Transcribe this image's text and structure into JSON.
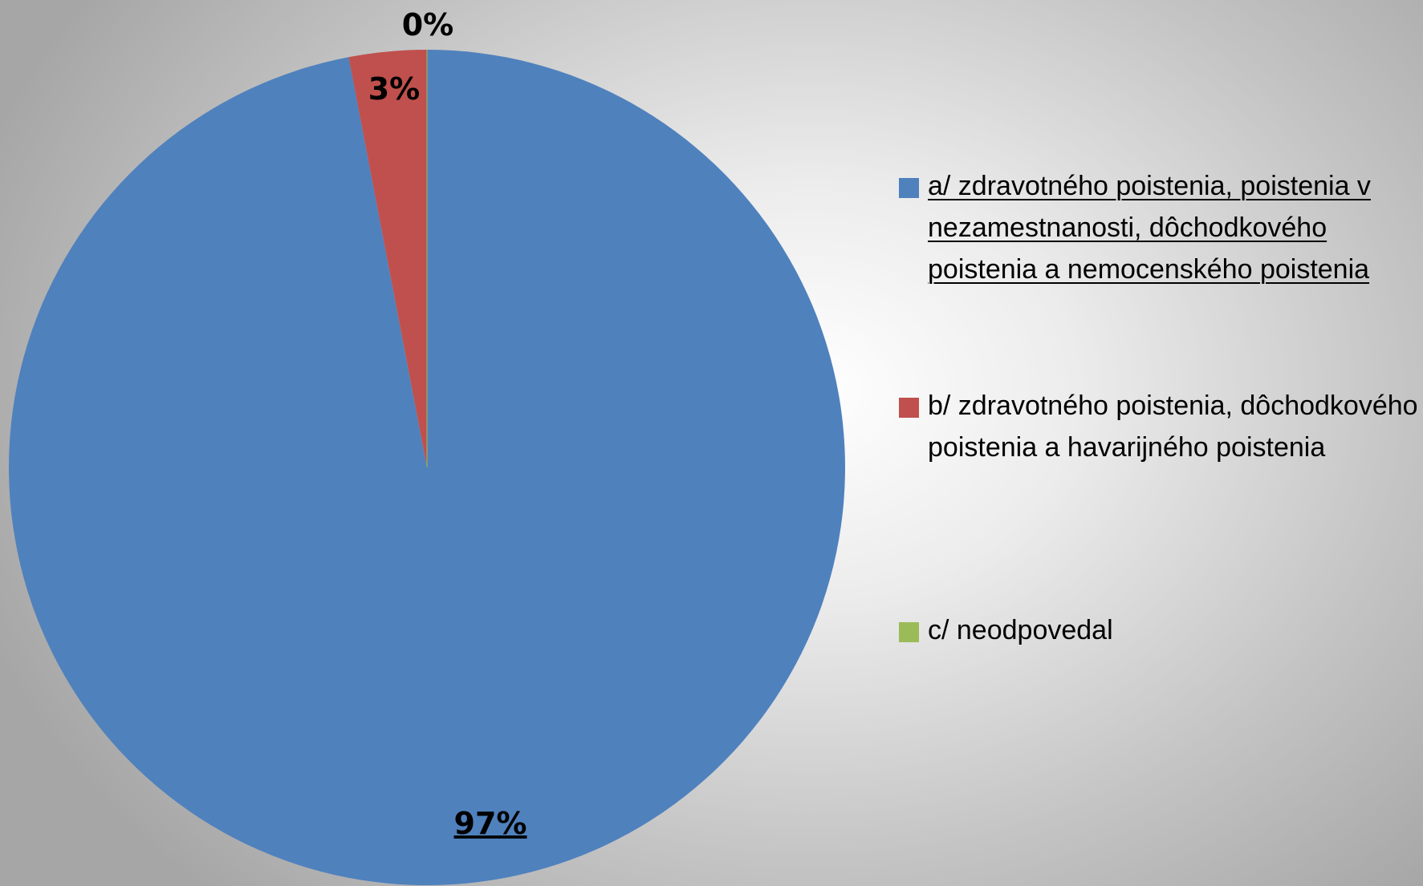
{
  "chart_data": {
    "type": "pie",
    "categories": [
      "a/ zdravotného poistenia, poistenia v nezamestnanosti, dôchodkového poistenia a nemocenského poistenia",
      "b/ zdravotného poistenia, dôchodkového poistenia a havarijného poistenia",
      "c/ neodpovedal"
    ],
    "values": [
      97,
      3,
      0
    ],
    "data_labels": [
      "97%",
      "3%",
      "0%"
    ],
    "colors": [
      "#4f81bd",
      "#c0504d",
      "#9bbb59"
    ],
    "legend_placement": "right",
    "highlighted_category": "a/ zdravotného poistenia, poistenia v nezamestnanosti, dôchodkového poistenia a nemocenského poistenia"
  }
}
